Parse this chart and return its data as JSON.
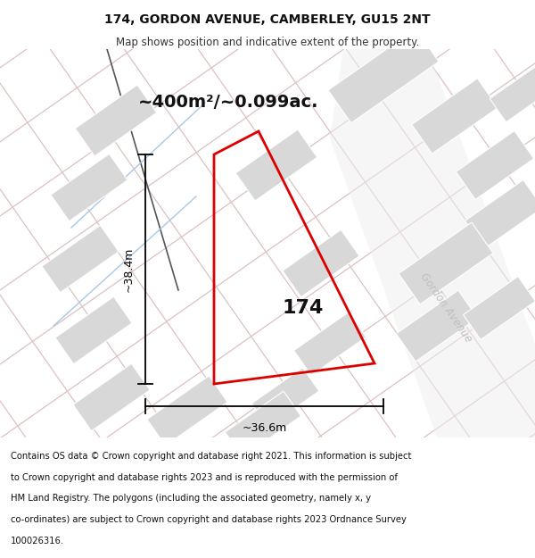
{
  "title_line1": "174, GORDON AVENUE, CAMBERLEY, GU15 2NT",
  "title_line2": "Map shows position and indicative extent of the property.",
  "area_text": "~400m²/~0.099ac.",
  "property_number": "174",
  "width_label": "~36.6m",
  "height_label": "~38.4m",
  "street_label": "Gordon Avenue",
  "footer_lines": [
    "Contains OS data © Crown copyright and database right 2021. This information is subject",
    "to Crown copyright and database rights 2023 and is reproduced with the permission of",
    "HM Land Registry. The polygons (including the associated geometry, namely x, y",
    "co-ordinates) are subject to Crown copyright and database rights 2023 Ordnance Survey",
    "100026316."
  ],
  "map_bg": "#f7f7f7",
  "building_fill": "#d8d8d8",
  "building_edge": "#ffffff",
  "property_stroke": "#dd0000",
  "diag_line_color": "#f5b8b8",
  "grey_line_color": "#cccccc",
  "blue_line_color": "#a8c8e8",
  "dark_line_color": "#888888",
  "street_label_color": "#c0c0c0",
  "dim_color": "#000000",
  "text_color": "#111111",
  "footer_color": "#111111"
}
